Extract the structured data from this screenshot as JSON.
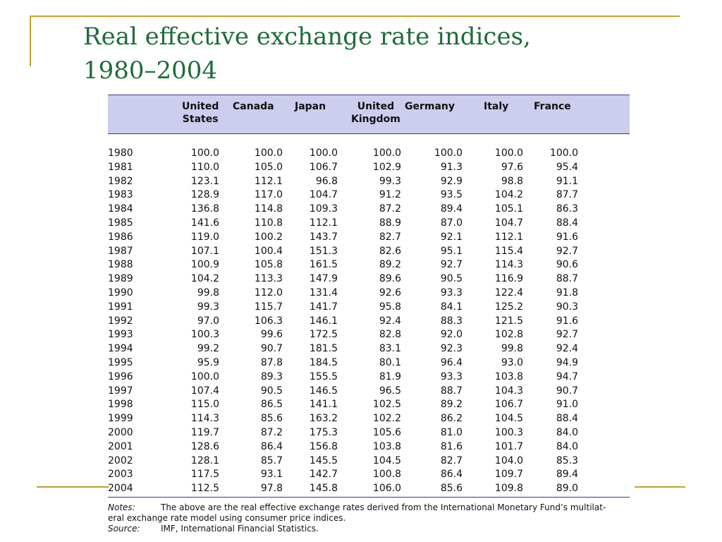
{
  "title": {
    "line1": "Real effective exchange rate indices,",
    "line2": "1980–2004"
  },
  "table": {
    "columns": [
      "",
      "United\nStates",
      "Canada",
      "Japan",
      "United\nKingdom",
      "Germany",
      "Italy",
      "France"
    ],
    "rows": [
      [
        "1980",
        "100.0",
        "100.0",
        "100.0",
        "100.0",
        "100.0",
        "100.0",
        "100.0"
      ],
      [
        "1981",
        "110.0",
        "105.0",
        "106.7",
        "102.9",
        "91.3",
        "97.6",
        "95.4"
      ],
      [
        "1982",
        "123.1",
        "112.1",
        "96.8",
        "99.3",
        "92.9",
        "98.8",
        "91.1"
      ],
      [
        "1983",
        "128.9",
        "117.0",
        "104.7",
        "91.2",
        "93.5",
        "104.2",
        "87.7"
      ],
      [
        "1984",
        "136.8",
        "114.8",
        "109.3",
        "87.2",
        "89.4",
        "105.1",
        "86.3"
      ],
      [
        "1985",
        "141.6",
        "110.8",
        "112.1",
        "88.9",
        "87.0",
        "104.7",
        "88.4"
      ],
      [
        "1986",
        "119.0",
        "100.2",
        "143.7",
        "82.7",
        "92.1",
        "112.1",
        "91.6"
      ],
      [
        "1987",
        "107.1",
        "100.4",
        "151.3",
        "82.6",
        "95.1",
        "115.4",
        "92.7"
      ],
      [
        "1988",
        "100.9",
        "105.8",
        "161.5",
        "89.2",
        "92.7",
        "114.3",
        "90.6"
      ],
      [
        "1989",
        "104.2",
        "113.3",
        "147.9",
        "89.6",
        "90.5",
        "116.9",
        "88.7"
      ],
      [
        "1990",
        "99.8",
        "112.0",
        "131.4",
        "92.6",
        "93.3",
        "122.4",
        "91.8"
      ],
      [
        "1991",
        "99.3",
        "115.7",
        "141.7",
        "95.8",
        "84.1",
        "125.2",
        "90.3"
      ],
      [
        "1992",
        "97.0",
        "106.3",
        "146.1",
        "92.4",
        "88.3",
        "121.5",
        "91.6"
      ],
      [
        "1993",
        "100.3",
        "99.6",
        "172.5",
        "82.8",
        "92.0",
        "102.8",
        "92.7"
      ],
      [
        "1994",
        "99.2",
        "90.7",
        "181.5",
        "83.1",
        "92.3",
        "99.8",
        "92.4"
      ],
      [
        "1995",
        "95.9",
        "87.8",
        "184.5",
        "80.1",
        "96.4",
        "93.0",
        "94.9"
      ],
      [
        "1996",
        "100.0",
        "89.3",
        "155.5",
        "81.9",
        "93.3",
        "103.8",
        "94.7"
      ],
      [
        "1997",
        "107.4",
        "90.5",
        "146.5",
        "96.5",
        "88.7",
        "104.3",
        "90.7"
      ],
      [
        "1998",
        "115.0",
        "86.5",
        "141.1",
        "102.5",
        "89.2",
        "106.7",
        "91.0"
      ],
      [
        "1999",
        "114.3",
        "85.6",
        "163.2",
        "102.2",
        "86.2",
        "104.5",
        "88.4"
      ],
      [
        "2000",
        "119.7",
        "87.2",
        "175.3",
        "105.6",
        "81.0",
        "100.3",
        "84.0"
      ],
      [
        "2001",
        "128.6",
        "86.4",
        "156.8",
        "103.8",
        "81.6",
        "101.7",
        "84.0"
      ],
      [
        "2002",
        "128.1",
        "85.7",
        "145.5",
        "104.5",
        "82.7",
        "104.0",
        "85.3"
      ],
      [
        "2003",
        "117.5",
        "93.1",
        "142.7",
        "100.8",
        "86.4",
        "109.7",
        "89.4"
      ],
      [
        "2004",
        "112.5",
        "97.8",
        "145.8",
        "106.0",
        "85.6",
        "109.8",
        "89.0"
      ]
    ]
  },
  "notes": {
    "notes_label": "Notes:",
    "notes_text_1": "The above are the real effective exchange rates derived from the International Monetary Fund’s multilat-",
    "notes_text_2": "eral exchange rate model using consumer price indices.",
    "source_label": "Source:",
    "source_text": "IMF, International Financial Statistics."
  },
  "colors": {
    "title": "#1f6b3a",
    "accent_lines": "#c9a227",
    "header_band": "#cdcdee",
    "table_rules": "#3a3a8a"
  }
}
